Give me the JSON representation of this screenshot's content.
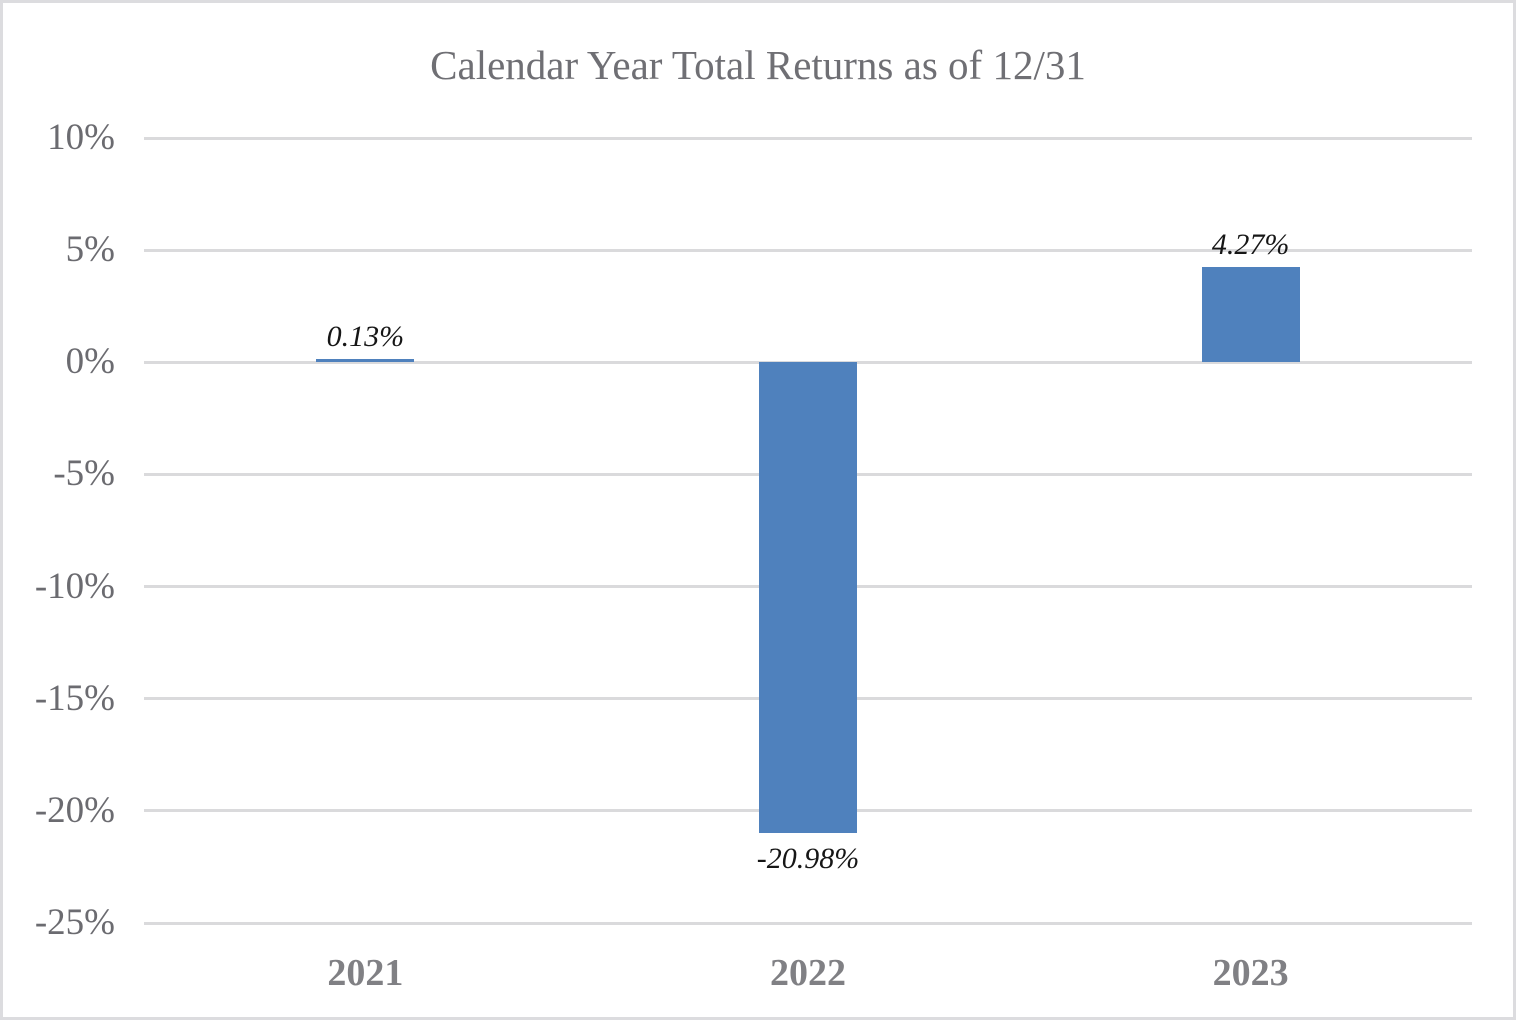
{
  "chart_data": {
    "type": "bar",
    "title": "Calendar Year Total Returns as of 12/31",
    "categories": [
      "2021",
      "2022",
      "2023"
    ],
    "values": [
      0.13,
      -20.98,
      4.27
    ],
    "data_labels": [
      "0.13%",
      "-20.98%",
      "4.27%"
    ],
    "y_tick_labels": [
      "10%",
      "5%",
      "0%",
      "-5%",
      "-10%",
      "-15%",
      "-20%",
      "-25%"
    ],
    "y_tick_values": [
      10,
      5,
      0,
      -5,
      -10,
      -15,
      -20,
      -25
    ],
    "ylim": [
      -25,
      10
    ],
    "y_step": 5,
    "xlabel": "",
    "ylabel": "",
    "grid": true,
    "legend": false,
    "bar_color": "#4f81bd",
    "gridline_color": "#dadadc",
    "title_color": "#6f6f74",
    "tick_label_color": "#6b6b70",
    "category_label_color": "#808084",
    "data_label_color": "#161616"
  }
}
